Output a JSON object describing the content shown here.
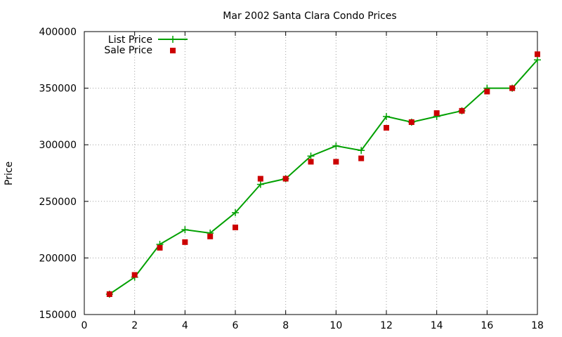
{
  "chart_data": {
    "type": "line",
    "title": "Mar 2002 Santa Clara Condo Prices",
    "xlabel": "",
    "ylabel": "Price",
    "xlim": [
      0,
      18
    ],
    "ylim": [
      150000,
      400000
    ],
    "x_ticks": [
      "0",
      "2",
      "4",
      "6",
      "8",
      "10",
      "12",
      "14",
      "16",
      "18"
    ],
    "y_ticks": [
      "150000",
      "200000",
      "250000",
      "300000",
      "350000",
      "400000"
    ],
    "grid": true,
    "legend_position": "top-left",
    "series": [
      {
        "name": "List Price",
        "style": "line-with-plus-markers",
        "color": "#00a000",
        "x": [
          1,
          2,
          3,
          4,
          5,
          6,
          7,
          8,
          9,
          10,
          11,
          12,
          13,
          14,
          15,
          16,
          17,
          18
        ],
        "y": [
          168000,
          183000,
          212000,
          225000,
          222000,
          240000,
          265000,
          270000,
          290000,
          299000,
          295000,
          325000,
          320000,
          325000,
          330000,
          350000,
          350000,
          375000
        ]
      },
      {
        "name": "Sale Price",
        "style": "square-markers",
        "color": "#cc0000",
        "x": [
          1,
          2,
          3,
          4,
          5,
          6,
          7,
          8,
          9,
          10,
          11,
          12,
          13,
          14,
          15,
          16,
          17,
          18
        ],
        "y": [
          168000,
          185000,
          209000,
          214000,
          219000,
          227000,
          270000,
          270000,
          285000,
          285000,
          288000,
          315000,
          320000,
          328000,
          330000,
          347000,
          350000,
          380000
        ]
      }
    ]
  }
}
